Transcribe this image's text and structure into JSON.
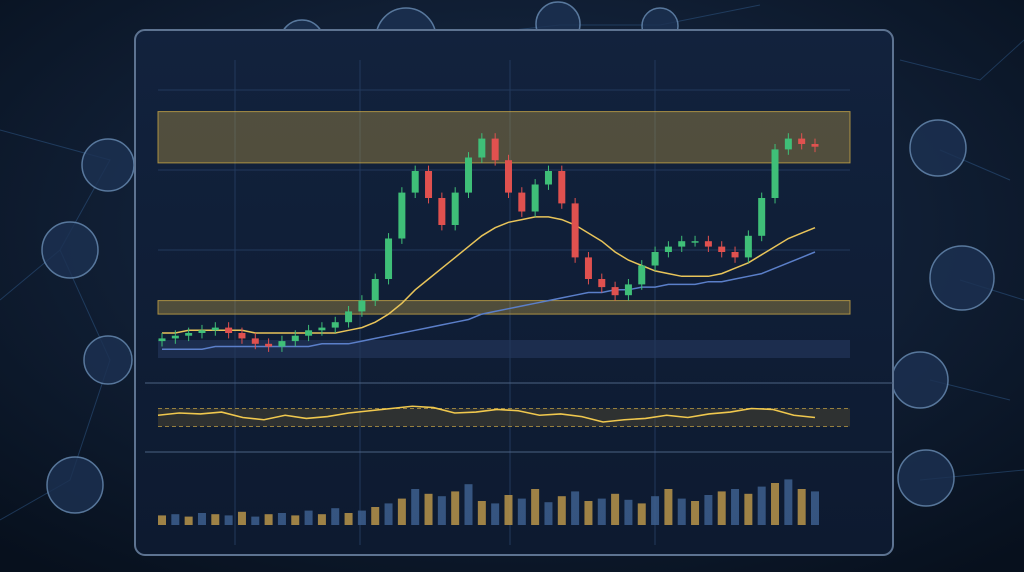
{
  "chart_data": [
    {
      "type": "candlestick",
      "open": [
        7,
        8,
        9,
        10,
        11,
        12,
        10,
        8,
        6,
        5,
        7,
        9,
        11,
        12,
        14,
        18,
        22,
        30,
        45,
        62,
        70,
        60,
        50,
        62,
        75,
        82,
        74,
        62,
        55,
        65,
        70,
        58,
        38,
        30,
        27,
        24,
        28,
        35,
        40,
        42,
        44,
        44,
        42,
        40,
        38,
        46,
        60,
        78,
        82,
        80
      ],
      "high": [
        10,
        11,
        12,
        13,
        14,
        14,
        12,
        10,
        8,
        9,
        11,
        13,
        14,
        16,
        20,
        24,
        32,
        47,
        64,
        72,
        72,
        62,
        64,
        77,
        84,
        84,
        76,
        64,
        67,
        72,
        72,
        60,
        40,
        32,
        29,
        30,
        37,
        42,
        44,
        46,
        46,
        46,
        44,
        42,
        48,
        62,
        80,
        84,
        84,
        82
      ],
      "low": [
        5,
        6,
        7,
        8,
        9,
        8,
        6,
        4,
        3,
        3,
        5,
        7,
        9,
        10,
        12,
        16,
        20,
        28,
        43,
        60,
        58,
        48,
        48,
        60,
        73,
        72,
        60,
        53,
        53,
        63,
        56,
        36,
        28,
        25,
        22,
        22,
        26,
        33,
        38,
        40,
        42,
        40,
        38,
        36,
        36,
        44,
        58,
        76,
        78,
        77
      ],
      "close": [
        8,
        9,
        10,
        11,
        12,
        10,
        8,
        6,
        5,
        7,
        9,
        11,
        12,
        14,
        18,
        22,
        30,
        45,
        62,
        70,
        60,
        50,
        62,
        75,
        82,
        74,
        62,
        55,
        65,
        70,
        58,
        38,
        30,
        27,
        24,
        28,
        35,
        40,
        42,
        44,
        44,
        42,
        40,
        38,
        46,
        60,
        78,
        82,
        80,
        79
      ],
      "up_color": "#3fbf78",
      "down_color": "#e0514f",
      "series": [
        {
          "color": "#e8c45a",
          "values": [
            10,
            10,
            11,
            11,
            11,
            11,
            11,
            10,
            10,
            10,
            10,
            10,
            10,
            10,
            11,
            12,
            14,
            17,
            21,
            26,
            30,
            34,
            38,
            42,
            46,
            49,
            51,
            52,
            53,
            53,
            52,
            50,
            47,
            44,
            40,
            37,
            35,
            33,
            32,
            31,
            31,
            31,
            32,
            34,
            36,
            39,
            42,
            45,
            47,
            49
          ]
        },
        {
          "color": "#5b7fc9",
          "values": [
            4,
            4,
            4,
            4,
            5,
            5,
            5,
            5,
            5,
            5,
            5,
            5,
            6,
            6,
            6,
            7,
            8,
            9,
            10,
            11,
            12,
            13,
            14,
            15,
            17,
            18,
            19,
            20,
            21,
            22,
            23,
            24,
            25,
            25,
            26,
            26,
            27,
            27,
            28,
            28,
            28,
            29,
            29,
            30,
            31,
            32,
            34,
            36,
            38,
            40
          ]
        }
      ],
      "bands": [
        {
          "low": 73,
          "high": 92,
          "color": "#c9a646"
        },
        {
          "low": 17,
          "high": 22,
          "color": "#c9a646"
        }
      ],
      "ylim": [
        0,
        100
      ]
    },
    {
      "type": "line",
      "values": [
        55,
        60,
        58,
        62,
        50,
        45,
        55,
        48,
        52,
        60,
        65,
        70,
        75,
        72,
        60,
        62,
        68,
        65,
        55,
        58,
        52,
        40,
        45,
        48,
        55,
        50,
        58,
        62,
        70,
        68,
        55,
        50
      ],
      "color": "#f0c84e",
      "levels": [
        30,
        70
      ],
      "ylim": [
        0,
        100
      ]
    },
    {
      "type": "bar",
      "values": [
        8,
        9,
        7,
        10,
        9,
        8,
        11,
        7,
        9,
        10,
        8,
        12,
        9,
        14,
        10,
        12,
        15,
        18,
        22,
        30,
        26,
        24,
        28,
        34,
        20,
        18,
        25,
        22,
        30,
        19,
        24,
        28,
        20,
        22,
        26,
        21,
        18,
        24,
        30,
        22,
        20,
        25,
        28,
        30,
        26,
        32,
        35,
        38,
        30,
        28
      ],
      "colors": [
        "#b8944a",
        "#3d5f8e"
      ],
      "ylim": [
        0,
        50
      ]
    }
  ]
}
